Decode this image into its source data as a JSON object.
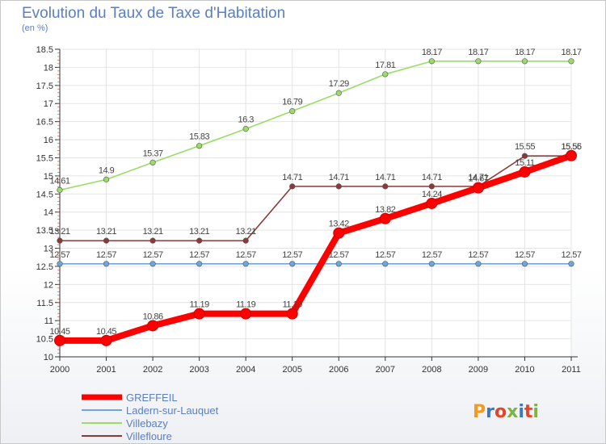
{
  "title": "Evolution du Taux de Taxe d'Habitation",
  "unit_label": "(en %)",
  "logo_text": "Proxiti",
  "chart_data": {
    "type": "line",
    "title": "Evolution du Taux de Taxe d'Habitation",
    "ylabel": "(en %)",
    "xlabel": "",
    "ylim": [
      10,
      18.5
    ],
    "y_ticks": [
      10,
      10.5,
      11,
      11.5,
      12,
      12.5,
      13,
      13.5,
      14,
      14.5,
      15,
      15.5,
      16,
      16.5,
      17,
      17.5,
      18,
      18.5
    ],
    "y_tick_labels": [
      "10",
      "10.5",
      "11",
      "11.5",
      "12",
      "12.5",
      "13",
      "13.5",
      "14",
      "14.5",
      "15",
      "15.5",
      "16",
      "16.5",
      "17",
      "17.5",
      "18",
      "18.5"
    ],
    "x": [
      "2000",
      "2001",
      "2002",
      "2003",
      "2004",
      "2005",
      "2006",
      "2007",
      "2008",
      "2009",
      "2010",
      "2011"
    ],
    "grid": true,
    "legend_position": "bottom-left",
    "series": [
      {
        "name": "GREFFEIL",
        "color": "#ff0000",
        "values": [
          10.45,
          10.45,
          10.86,
          11.19,
          11.19,
          11.19,
          13.42,
          13.82,
          14.24,
          14.67,
          15.11,
          15.56
        ],
        "labels": [
          "10.45",
          "10.45",
          "10.86",
          "11.19",
          "11.19",
          "11.19",
          "13.42",
          "13.82",
          "14.24",
          "14.67",
          "15.11",
          "15.56"
        ]
      },
      {
        "name": "Ladern-sur-Lauquet",
        "color": "#6fa6d9",
        "values": [
          12.57,
          12.57,
          12.57,
          12.57,
          12.57,
          12.57,
          12.57,
          12.57,
          12.57,
          12.57,
          12.57,
          12.57
        ],
        "labels": [
          "12.57",
          "12.57",
          "12.57",
          "12.57",
          "12.57",
          "12.57",
          "12.57",
          "12.57",
          "12.57",
          "12.57",
          "12.57",
          "12.57"
        ]
      },
      {
        "name": "Villebazy",
        "color": "#99dd66",
        "values": [
          14.61,
          14.9,
          15.37,
          15.83,
          16.3,
          16.79,
          17.29,
          17.81,
          18.17,
          18.17,
          18.17,
          18.17
        ],
        "labels": [
          "14.61",
          "14.9",
          "15.37",
          "15.83",
          "16.3",
          "16.79",
          "17.29",
          "17.81",
          "18.17",
          "18.17",
          "18.17",
          "18.17"
        ]
      },
      {
        "name": "Villefloure",
        "color": "#8b3a3a",
        "values": [
          13.21,
          13.21,
          13.21,
          13.21,
          13.21,
          14.71,
          14.71,
          14.71,
          14.71,
          14.71,
          15.55,
          15.55
        ],
        "labels": [
          "13.21",
          "13.21",
          "13.21",
          "13.21",
          "13.21",
          "14.71",
          "14.71",
          "14.71",
          "14.71",
          "14.71",
          "15.55",
          "15.55"
        ]
      }
    ]
  }
}
